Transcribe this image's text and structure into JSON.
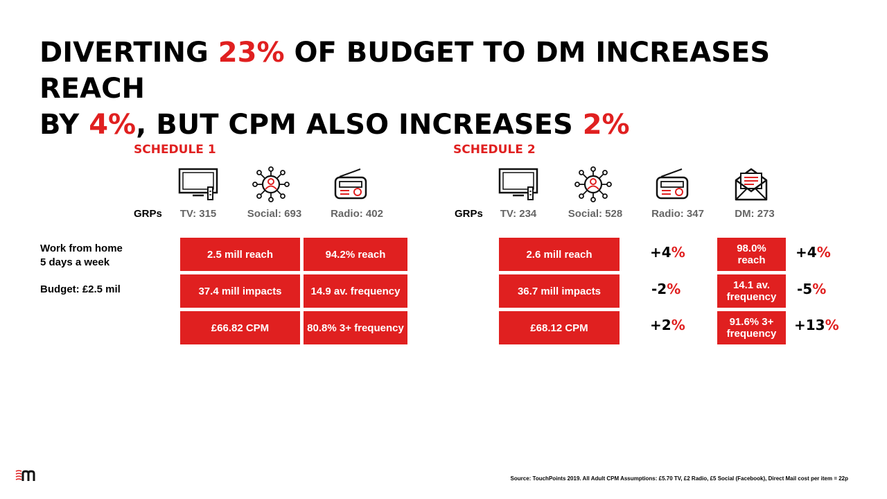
{
  "title": {
    "line1_a": "DIVERTING ",
    "line1_b": "23%",
    "line1_c": " OF BUDGET TO DM INCREASES REACH",
    "line2_a": "BY ",
    "line2_b": "4%",
    "line2_c": ", BUT CPM ALSO INCREASES ",
    "line2_d": "2%"
  },
  "schedule1": {
    "label": "SCHEDULE 1",
    "grps_label": "GRPs",
    "grps": [
      "TV: 315",
      "Social: 693",
      "Radio: 402"
    ],
    "icons": [
      "tv-icon",
      "social-network-icon",
      "radio-icon"
    ],
    "col1": [
      "2.5 mill reach",
      "37.4 mill impacts",
      "£66.82 CPM"
    ],
    "col2": [
      "94.2% reach",
      "14.9 av. frequency",
      "80.8% 3+ frequency"
    ]
  },
  "schedule2": {
    "label": "SCHEDULE 2",
    "grps_label": "GRPs",
    "grps": [
      "TV: 234",
      "Social: 528",
      "Radio: 347",
      "DM: 273"
    ],
    "icons": [
      "tv-icon",
      "social-network-icon",
      "radio-icon",
      "mail-icon"
    ],
    "col1": [
      "2.6 mill reach",
      "36.7 mill impacts",
      "£68.12 CPM"
    ],
    "col1_deltas": [
      {
        "sign": "+4",
        "pct": "%"
      },
      {
        "sign": "-2",
        "pct": "%"
      },
      {
        "sign": "+2",
        "pct": "%"
      }
    ],
    "col2": [
      "98.0% reach",
      "14.1 av. frequency",
      "91.6% 3+ frequency"
    ],
    "col2_deltas": [
      {
        "sign": "+4",
        "pct": "%"
      },
      {
        "sign": "-5",
        "pct": "%"
      },
      {
        "sign": "+13",
        "pct": "%"
      }
    ]
  },
  "side": {
    "line1": "Work from home",
    "line2": "5 days a week",
    "budget": "Budget: £2.5 mil"
  },
  "footer": {
    "source": "Source: TouchPoints 2019. All Adult CPM Assumptions: £5.70 TV, £2 Radio, £5 Social (Facebook), Direct Mail cost per item = 22p",
    "logo": "m-logo"
  },
  "colors": {
    "accent": "#e02020",
    "grey": "#666666"
  }
}
